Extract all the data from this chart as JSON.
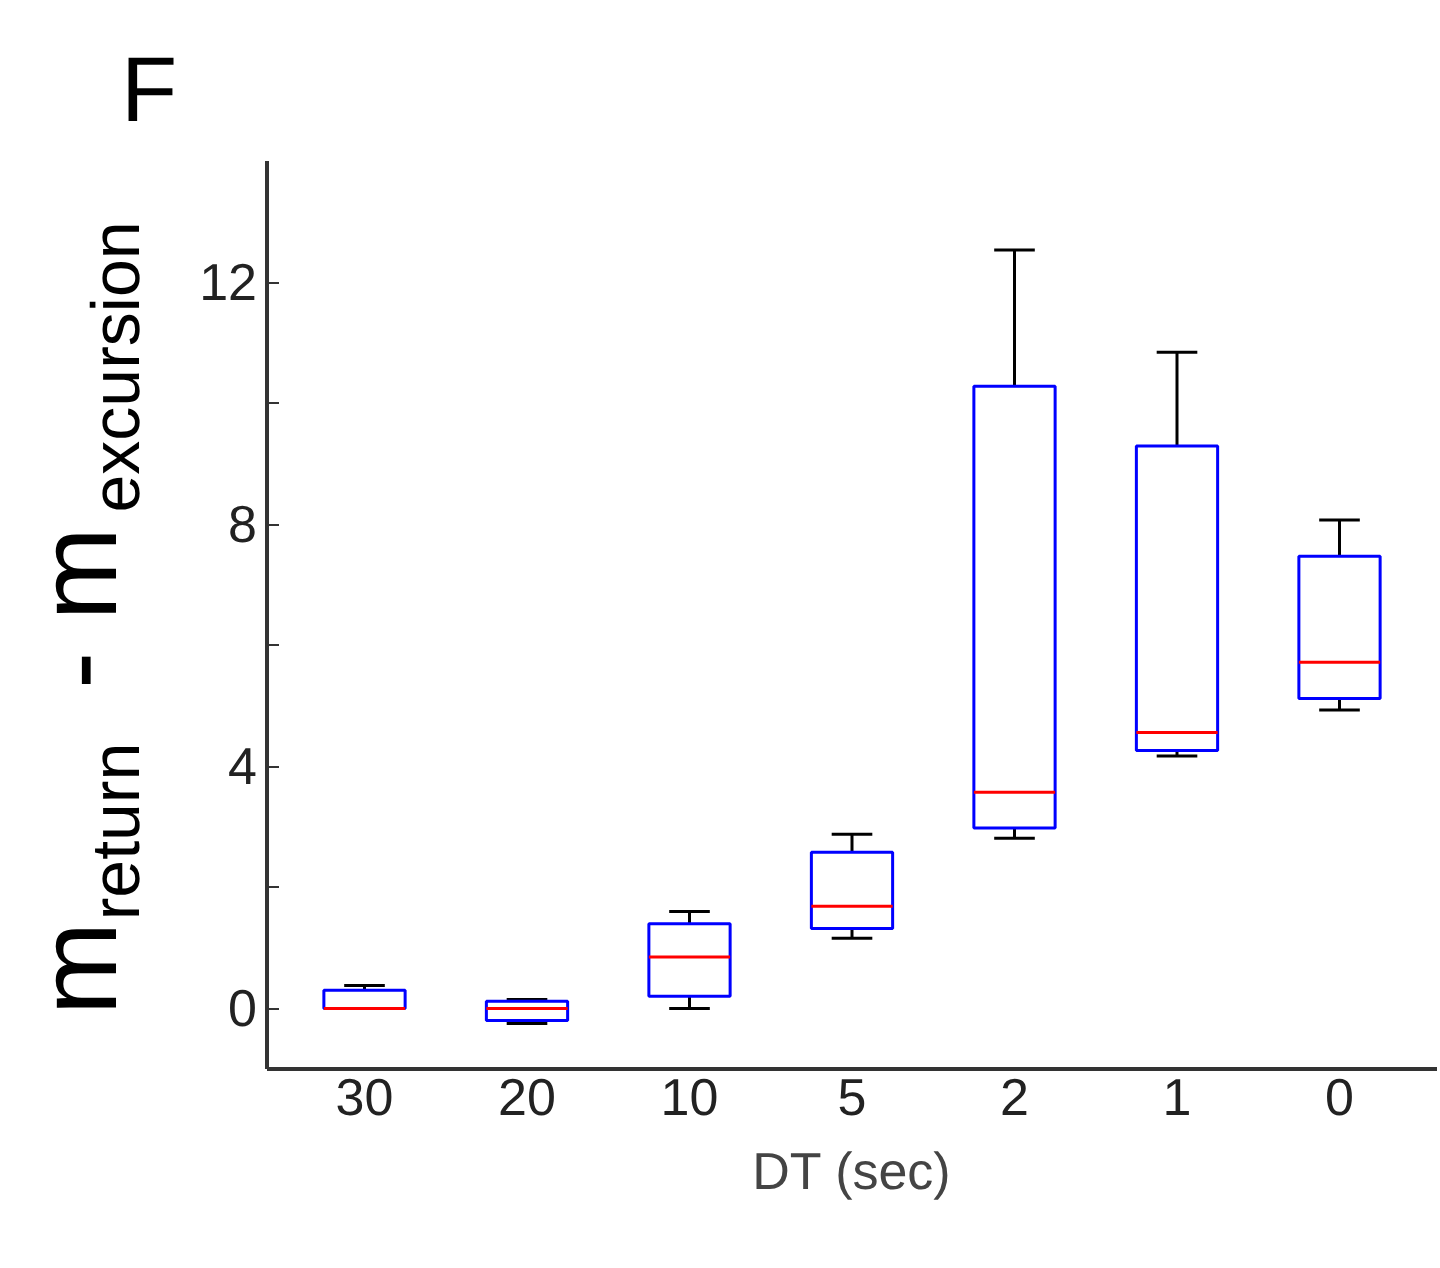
{
  "chart_data": {
    "type": "box",
    "title": "F",
    "xlabel": "DT (sec)",
    "ylabel": "m$_{return}$ - m$_{excursion}$",
    "categories": [
      "30",
      "20",
      "10",
      "5",
      "2",
      "1",
      "0"
    ],
    "color": "#0000ff",
    "boxes": [
      {
        "low": 0,
        "q1": 0,
        "median": 0,
        "q3": 0.3,
        "high": 0.38
      },
      {
        "low": -0.25,
        "q1": -0.2,
        "median": 0,
        "q3": 0.12,
        "high": 0.15
      },
      {
        "low": 0,
        "q1": 0.2,
        "median": 0.85,
        "q3": 1.4,
        "high": 1.6
      },
      {
        "low": 1.16,
        "q1": 1.32,
        "median": 1.69,
        "q3": 2.58,
        "high": 2.88
      },
      {
        "low": 2.81,
        "q1": 2.98,
        "median": 3.57,
        "q3": 10.28,
        "high": 12.53
      },
      {
        "low": 4.17,
        "q1": 4.26,
        "median": 4.56,
        "q3": 9.29,
        "high": 10.84
      },
      {
        "low": 4.93,
        "q1": 5.12,
        "median": 5.72,
        "q3": 7.47,
        "high": 8.07
      }
    ],
    "ylim": [
      -1,
      14
    ],
    "yticks": [
      0,
      {
        "value": 2,
        "label": null
      },
      4,
      {
        "value": 6,
        "label": null
      },
      8,
      {
        "value": 10,
        "label": null
      },
      12
    ],
    "grid": false
  }
}
